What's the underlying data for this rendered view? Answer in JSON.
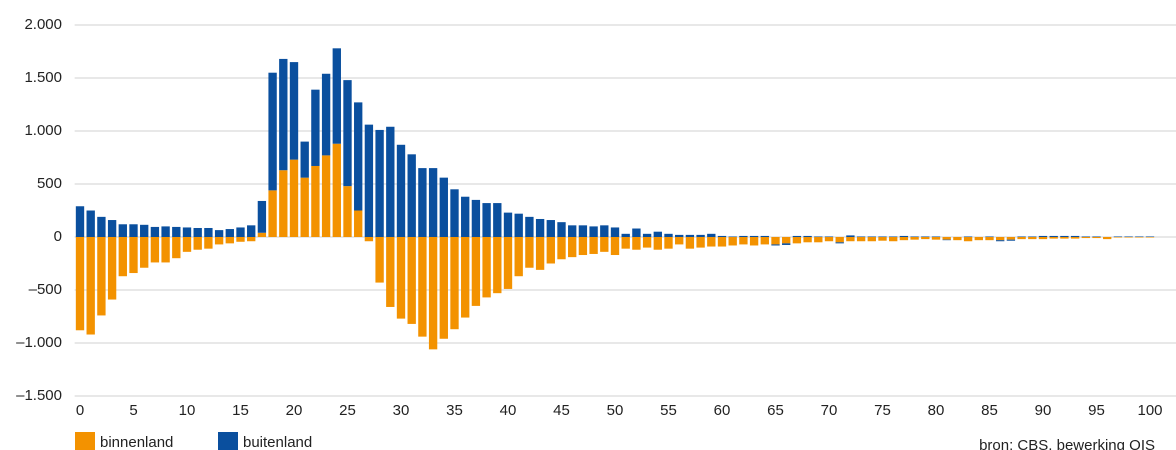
{
  "chart_data": {
    "type": "bar",
    "stacked": true,
    "x": [
      0,
      1,
      2,
      3,
      4,
      5,
      6,
      7,
      8,
      9,
      10,
      11,
      12,
      13,
      14,
      15,
      16,
      17,
      18,
      19,
      20,
      21,
      22,
      23,
      24,
      25,
      26,
      27,
      28,
      29,
      30,
      31,
      32,
      33,
      34,
      35,
      36,
      37,
      38,
      39,
      40,
      41,
      42,
      43,
      44,
      45,
      46,
      47,
      48,
      49,
      50,
      51,
      52,
      53,
      54,
      55,
      56,
      57,
      58,
      59,
      60,
      61,
      62,
      63,
      64,
      65,
      66,
      67,
      68,
      69,
      70,
      71,
      72,
      73,
      74,
      75,
      76,
      77,
      78,
      79,
      80,
      81,
      82,
      83,
      84,
      85,
      86,
      87,
      88,
      89,
      90,
      91,
      92,
      93,
      94,
      95,
      96,
      97,
      98,
      99,
      100
    ],
    "xlim": [
      -0.5,
      100.5
    ],
    "xticks": [
      0,
      5,
      10,
      15,
      20,
      25,
      30,
      35,
      40,
      45,
      50,
      55,
      60,
      65,
      70,
      75,
      80,
      85,
      90,
      95,
      100
    ],
    "ylim": [
      -1500,
      2000
    ],
    "yticks": [
      {
        "value": -1500,
        "label": "–1.500"
      },
      {
        "value": -1000,
        "label": "–1.000"
      },
      {
        "value": -500,
        "label": "–500"
      },
      0,
      500,
      {
        "value": 1000,
        "label": "1.000"
      },
      {
        "value": 1500,
        "label": "1.500"
      },
      {
        "value": 2000,
        "label": "2.000"
      }
    ],
    "grid": true,
    "legend": "bottom-left",
    "source": "bron: CBS, bewerking OIS",
    "series": [
      {
        "name": "binnenland",
        "color": "#f39200",
        "values": [
          -880,
          -920,
          -740,
          -590,
          -370,
          -340,
          -290,
          -240,
          -240,
          -200,
          -140,
          -120,
          -110,
          -70,
          -60,
          -45,
          -40,
          40,
          440,
          630,
          730,
          560,
          670,
          770,
          880,
          480,
          250,
          -40,
          -430,
          -660,
          -770,
          -820,
          -940,
          -1060,
          -960,
          -870,
          -760,
          -650,
          -570,
          -530,
          -490,
          -370,
          -290,
          -310,
          -250,
          -210,
          -190,
          -170,
          -160,
          -140,
          -170,
          -110,
          -120,
          -100,
          -120,
          -110,
          -70,
          -110,
          -100,
          -90,
          -90,
          -80,
          -70,
          -80,
          -70,
          -70,
          -60,
          -60,
          -50,
          -50,
          -40,
          -50,
          -40,
          -40,
          -40,
          -35,
          -40,
          -30,
          -25,
          -20,
          -25,
          -25,
          -30,
          -40,
          -30,
          -30,
          -30,
          -25,
          -20,
          -20,
          -20,
          -15,
          -15,
          -15,
          -10,
          -10,
          -20,
          -5,
          -5,
          -5,
          -5
        ]
      },
      {
        "name": "buitenland",
        "color": "#0a4f9e",
        "values": [
          290,
          250,
          190,
          160,
          120,
          120,
          115,
          95,
          100,
          95,
          90,
          85,
          85,
          65,
          75,
          90,
          110,
          300,
          1110,
          1050,
          920,
          340,
          720,
          770,
          900,
          1000,
          1020,
          1060,
          1010,
          1040,
          870,
          780,
          650,
          650,
          560,
          450,
          380,
          350,
          320,
          320,
          230,
          220,
          190,
          170,
          160,
          140,
          110,
          110,
          100,
          110,
          90,
          30,
          80,
          30,
          50,
          30,
          20,
          20,
          20,
          30,
          10,
          5,
          10,
          10,
          10,
          -10,
          -15,
          10,
          10,
          5,
          5,
          -10,
          15,
          5,
          5,
          5,
          5,
          10,
          5,
          5,
          5,
          -5,
          0,
          5,
          0,
          5,
          -10,
          -10,
          5,
          5,
          10,
          10,
          10,
          10,
          5,
          5,
          0,
          5,
          5,
          5,
          5
        ]
      }
    ]
  }
}
